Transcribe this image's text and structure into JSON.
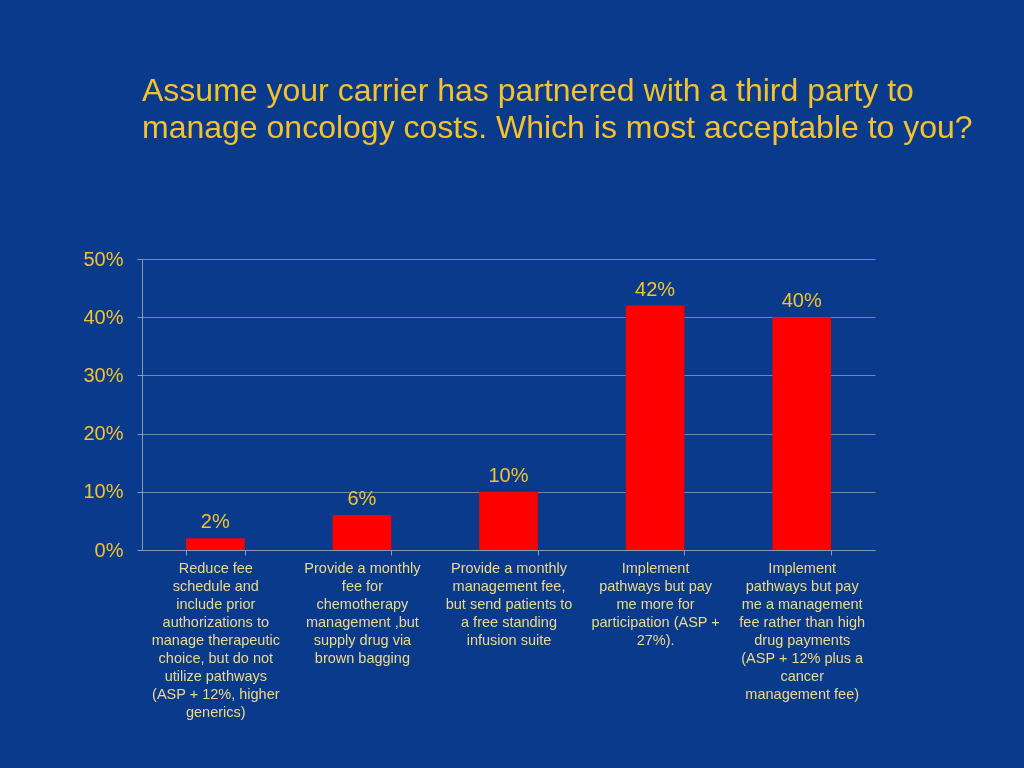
{
  "chart_data": {
    "type": "bar",
    "title": "Assume your carrier has partnered with a third party to manage oncology costs.  Which is most acceptable to you?",
    "categories": [
      "Reduce fee schedule and include prior authorizations to manage therapeutic choice, but do not utilize pathways (ASP + 12%, higher generics)",
      "Provide a monthly fee for chemotherapy management ,but supply drug via brown bagging",
      "Provide a monthly management fee, but send patients to a free standing infusion suite",
      "Implement pathways but pay me more for participation (ASP + 27%).",
      "Implement pathways but pay me a management fee rather than high drug payments (ASP + 12% plus a cancer management fee)"
    ],
    "values": [
      2,
      6,
      10,
      42,
      40
    ],
    "value_labels": [
      "2%",
      "6%",
      "10%",
      "42%",
      "40%"
    ],
    "color": "#ff0000",
    "ylim": [
      0,
      50
    ],
    "yticks": [
      {
        "value": 0,
        "label": "0%"
      },
      {
        "value": 10,
        "label": "10%"
      },
      {
        "value": 20,
        "label": "20%"
      },
      {
        "value": 30,
        "label": "30%"
      },
      {
        "value": 40,
        "label": "40%"
      },
      {
        "value": 50,
        "label": "50%"
      }
    ],
    "grid": "y"
  }
}
